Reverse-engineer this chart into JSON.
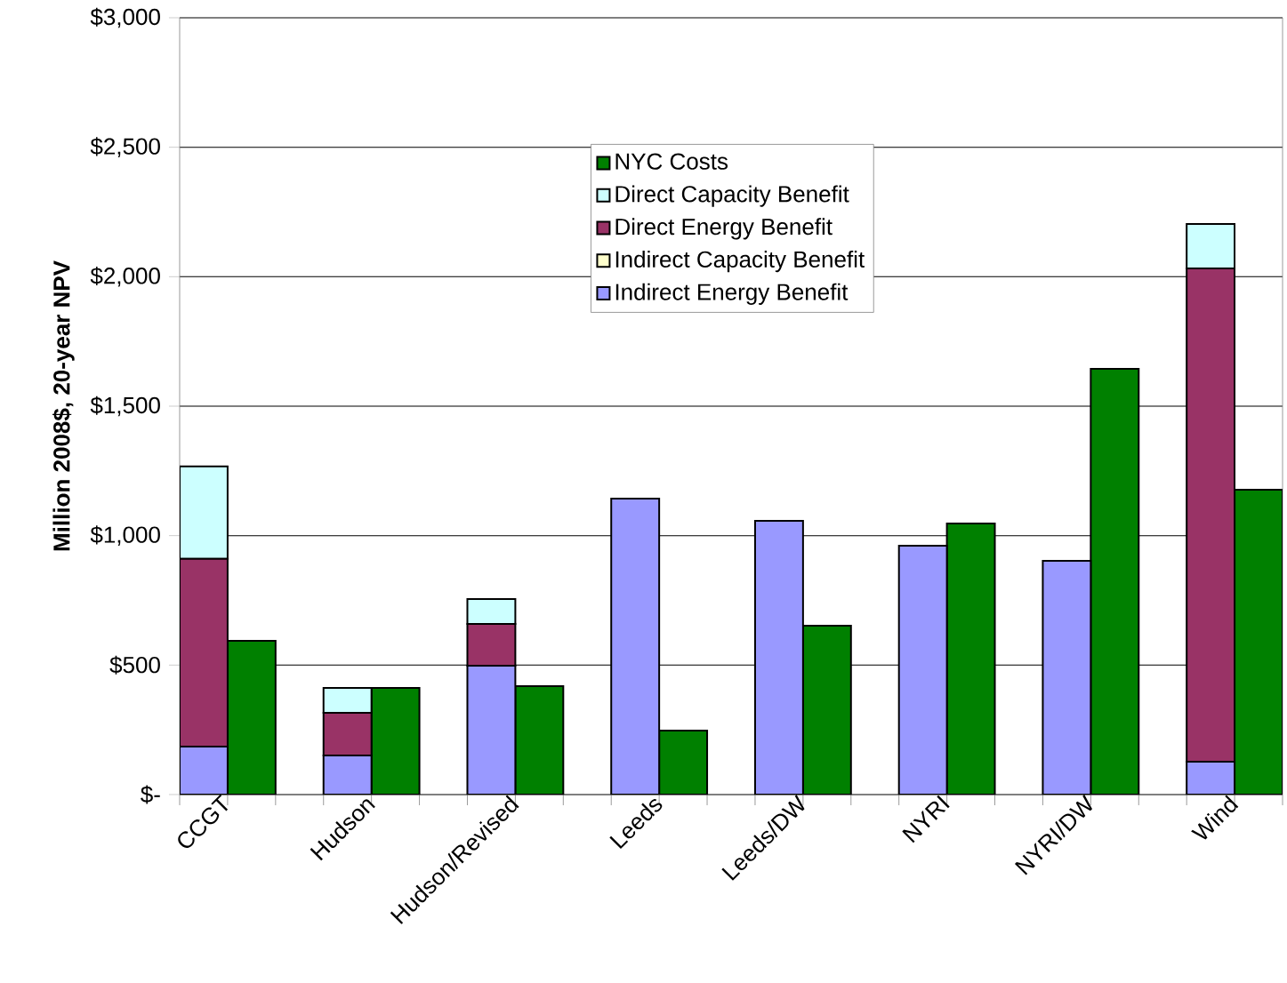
{
  "chart_data": {
    "type": "bar",
    "stacked": true,
    "ylabel": "Million 2008$, 20-year NPV",
    "categories": [
      "CCGT",
      null,
      null,
      "Hudson",
      null,
      null,
      "Hudson/Revised",
      null,
      null,
      "Leeds",
      null,
      null,
      "Leeds/DW",
      null,
      null,
      "NYRI",
      null,
      null,
      "NYRI/DW",
      null,
      null,
      "Wind",
      null
    ],
    "series": [
      {
        "name": "Indirect Energy Benefit",
        "color": "#9999ff",
        "values": [
          185,
          null,
          null,
          151,
          null,
          null,
          498,
          null,
          null,
          1143,
          null,
          null,
          1057,
          null,
          null,
          961,
          null,
          null,
          903,
          null,
          null,
          127,
          null
        ]
      },
      {
        "name": "Indirect Capacity Benefit",
        "color": "#ffffcc",
        "values": [
          0,
          null,
          null,
          0,
          null,
          null,
          0,
          null,
          null,
          0,
          null,
          null,
          0,
          null,
          null,
          0,
          null,
          null,
          0,
          null,
          null,
          0,
          null
        ]
      },
      {
        "name": "Direct Energy Benefit",
        "color": "#993366",
        "values": [
          725,
          null,
          null,
          165,
          null,
          null,
          161,
          null,
          null,
          0,
          null,
          null,
          0,
          null,
          null,
          0,
          null,
          null,
          0,
          null,
          null,
          1905,
          null
        ]
      },
      {
        "name": "Direct Capacity Benefit",
        "color": "#ccffff",
        "values": [
          357,
          null,
          null,
          96,
          null,
          null,
          96,
          null,
          null,
          0,
          null,
          null,
          0,
          null,
          null,
          0,
          null,
          null,
          0,
          null,
          null,
          172,
          null
        ]
      },
      {
        "name": "NYC Costs",
        "color": "#008000",
        "values": [
          null,
          594,
          null,
          null,
          412,
          null,
          null,
          419,
          null,
          null,
          247,
          null,
          null,
          652,
          null,
          null,
          1047,
          null,
          null,
          1644,
          null,
          null,
          1177
        ]
      }
    ],
    "ylim": [
      0,
      3000
    ],
    "yticks": [
      {
        "value": 0,
        "label": "$-"
      },
      {
        "value": 500,
        "label": "$500"
      },
      {
        "value": 1000,
        "label": "$1,000"
      },
      {
        "value": 1500,
        "label": "$1,500"
      },
      {
        "value": 2000,
        "label": "$2,000"
      },
      {
        "value": 2500,
        "label": "$2,500"
      },
      {
        "value": 3000,
        "label": "$3,000"
      }
    ],
    "grid": "y",
    "legend": "top"
  }
}
